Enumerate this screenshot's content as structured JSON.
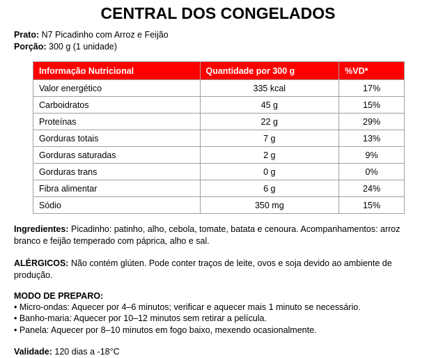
{
  "title": "CENTRAL DOS CONGELADOS",
  "prato": {
    "label": "Prato:",
    "value": "N7 Picadinho com Arroz e Feijão"
  },
  "porcao": {
    "label": "Porção:",
    "value": "300 g (1 unidade)"
  },
  "table": {
    "headers": [
      "Informação Nutricional",
      "Quantidade por 300 g",
      "%VD*"
    ],
    "rows": [
      [
        "Valor energético",
        "335 kcal",
        "17%"
      ],
      [
        "Carboidratos",
        "45 g",
        "15%"
      ],
      [
        "Proteínas",
        "22 g",
        "29%"
      ],
      [
        "Gorduras totais",
        "7 g",
        "13%"
      ],
      [
        "Gorduras saturadas",
        "2 g",
        "9%"
      ],
      [
        "Gorduras trans",
        "0 g",
        "0%"
      ],
      [
        "Fibra alimentar",
        "6 g",
        "24%"
      ],
      [
        "Sódio",
        "350 mg",
        "15%"
      ]
    ],
    "header_color": "#ff0000"
  },
  "ingredientes": {
    "label": "Ingredientes:",
    "value": "Picadinho: patinho, alho, cebola, tomate, batata e cenoura. Acompanhamentos: arroz branco e feijão temperado com páprica, alho e sal."
  },
  "alergicos": {
    "label": "ALÉRGICOS:",
    "value": "Não contém glúten. Pode conter traços de leite, ovos e soja devido ao ambiente de produção."
  },
  "preparo": {
    "label": "MODO DE PREPARO:",
    "items": [
      "• Micro-ondas: Aquecer por 4–6 minutos; verificar e aquecer mais 1 minuto se necessário.",
      "• Banho-maria: Aquecer por 10–12 minutos sem retirar a película.",
      "• Panela: Aquecer por 8–10 minutos em fogo baixo, mexendo ocasionalmente."
    ]
  },
  "validade": {
    "label": "Validade:",
    "value": "120 dias a -18°C"
  }
}
